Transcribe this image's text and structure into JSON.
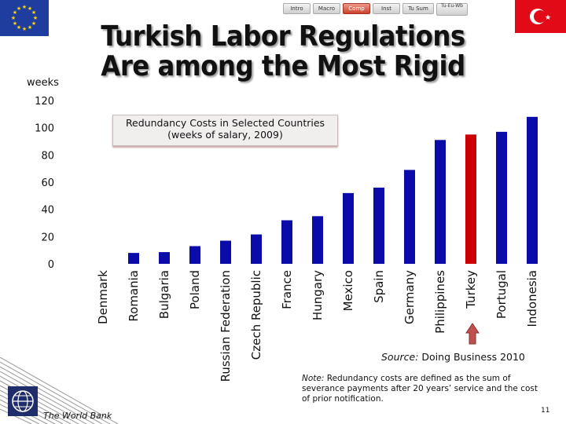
{
  "nav": {
    "tabs": [
      "Intro",
      "Macro",
      "Comp",
      "Inst",
      "Tu Sum",
      "Tu-Eu-Wb"
    ],
    "active_index": 2
  },
  "header": {
    "title_line1": "Turkish Labor Regulations",
    "title_line2": "Are among the Most Rigid"
  },
  "chart_data": {
    "type": "bar",
    "title": "Redundancy Costs in Selected Countries",
    "subtitle": "(weeks of salary, 2009)",
    "ylabel": "weeks",
    "ylim": [
      0,
      120
    ],
    "yticks": [
      0,
      20,
      40,
      60,
      80,
      100,
      120
    ],
    "categories": [
      "Denmark",
      "Romania",
      "Bulgaria",
      "Poland",
      "Russian Federation",
      "Czech Republic",
      "France",
      "Hungary",
      "Mexico",
      "Spain",
      "Germany",
      "Philippines",
      "Turkey",
      "Portugal",
      "Indonesia"
    ],
    "values": [
      0,
      8,
      8.6,
      13,
      17,
      21.6,
      32,
      35,
      52,
      56,
      69,
      91,
      95,
      97,
      108
    ],
    "highlight": "Turkey",
    "bar_color": "#0b0baa",
    "highlight_color": "#cc0000",
    "grid": false
  },
  "footer": {
    "source_label": "Source:",
    "source_text": " Doing Business 2010",
    "note_label": "Note:",
    "note_text": " Redundancy costs are defined as the sum of severance payments after 20 years’ service and the cost of prior notification.",
    "org_name": "The World Bank",
    "page_number": "11"
  },
  "colors": {
    "accent_arrow": "#c0504d",
    "eu_blue": "#1e3d9e",
    "tr_red": "#e30a17"
  }
}
